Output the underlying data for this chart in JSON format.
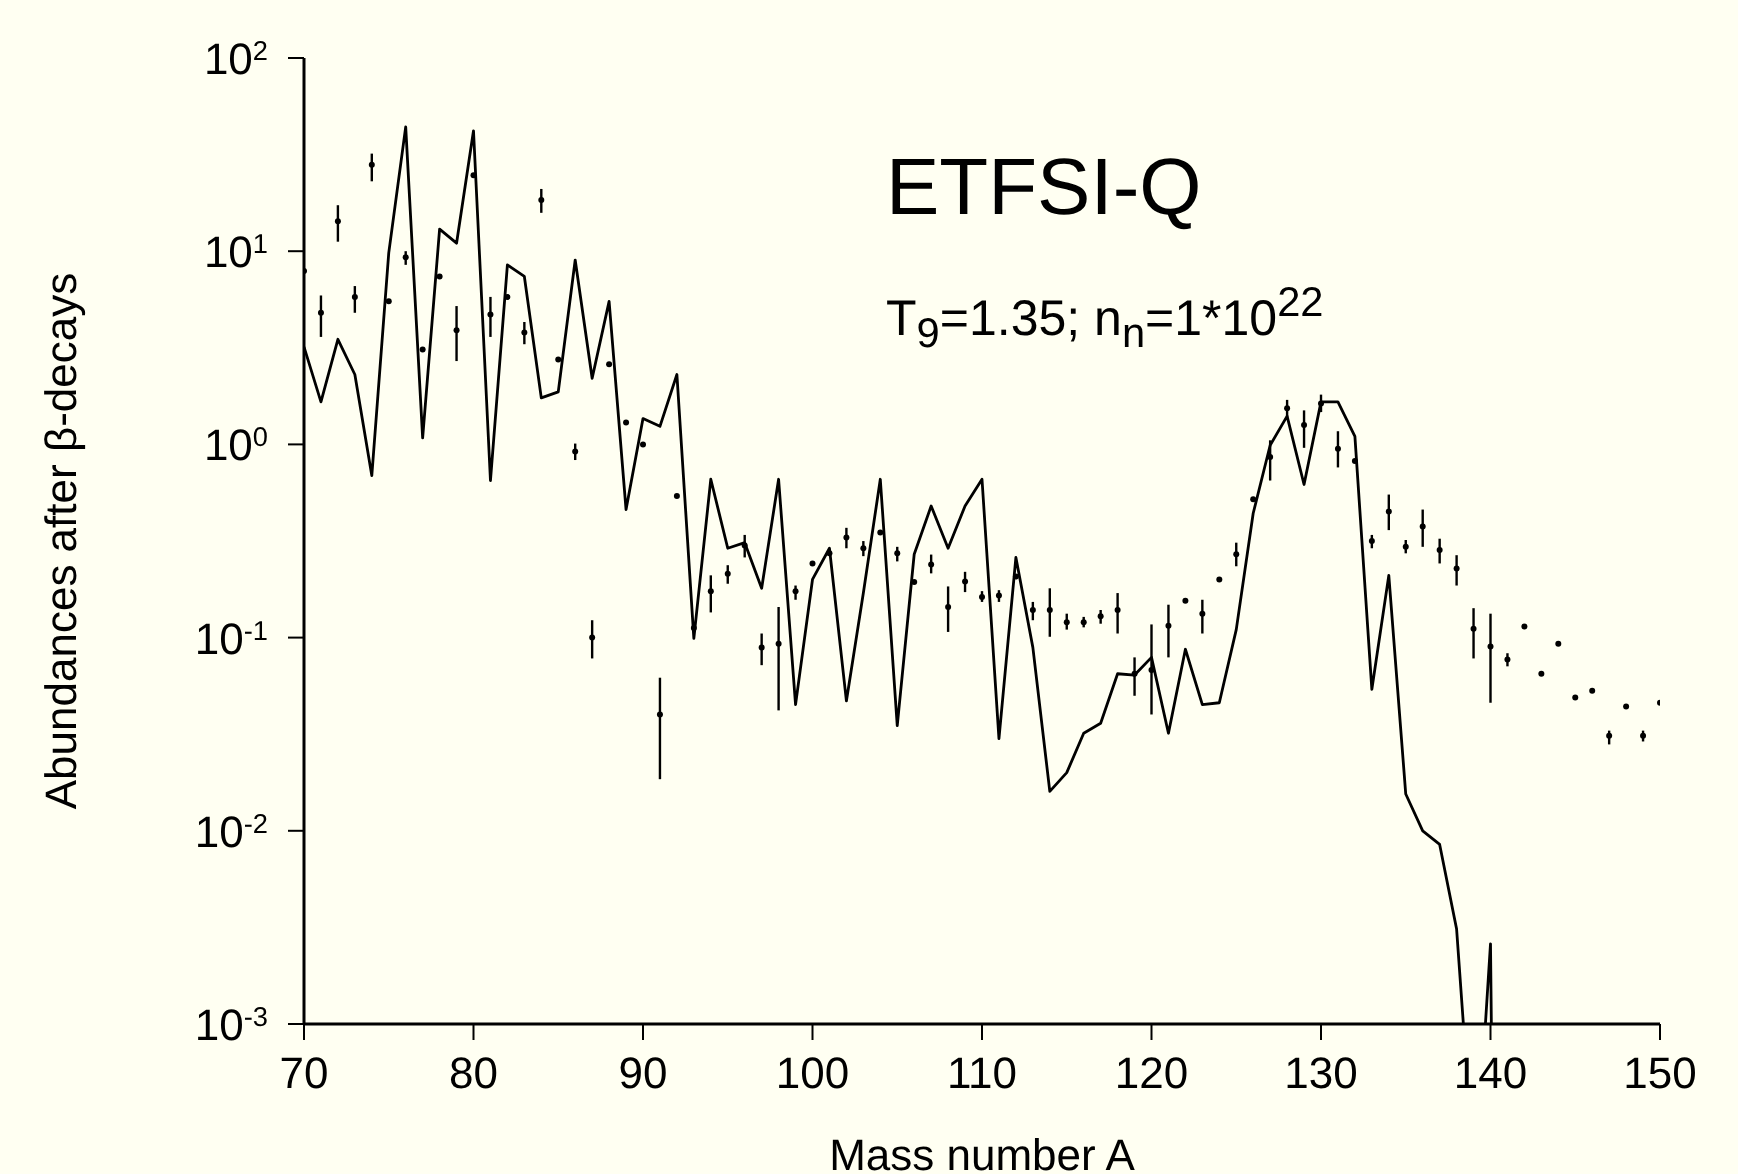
{
  "chart_data": {
    "type": "line",
    "xlabel": "Mass number A",
    "ylabel": "Abundances after β-decays",
    "annotations": [
      "ETFSI-Q",
      "T$_{9}$=1.35;  n$_{n}$=1*10$^{22}$"
    ],
    "log": "y",
    "xlim": [
      70,
      150
    ],
    "xticks": [
      70,
      80,
      90,
      100,
      110,
      120,
      130,
      140,
      150
    ],
    "ylim": [
      0.001,
      100
    ],
    "yticks": [
      {
        "value": 0.001,
        "label": "10$^{-3}$"
      },
      {
        "value": 0.01,
        "label": "10$^{-2}$"
      },
      {
        "value": 0.1,
        "label": "10$^{-1}$"
      },
      {
        "value": 1,
        "label": "10$^{0}$"
      },
      {
        "value": 10,
        "label": "10$^{1}$"
      },
      {
        "value": 100,
        "label": "10$^{2}$"
      }
    ],
    "series": [
      {
        "color": "#000000",
        "line_style": "solid",
        "x": [
          70,
          71,
          72,
          73,
          74,
          75,
          76,
          77,
          78,
          79,
          80,
          81,
          82,
          83,
          84,
          85,
          86,
          87,
          88,
          89,
          90,
          91,
          92,
          93,
          94,
          95,
          96,
          97,
          98,
          99,
          100,
          101,
          102,
          103,
          104,
          105,
          106,
          107,
          108,
          109,
          110,
          111,
          112,
          113,
          114,
          115,
          116,
          117,
          118,
          119,
          120,
          121,
          122,
          123,
          124,
          125,
          126,
          127,
          128,
          129,
          130,
          131,
          132,
          133,
          134,
          135,
          136,
          137,
          138,
          138.4,
          138.5,
          139.7,
          140,
          140.05
        ],
        "values": [
          3.2,
          1.66,
          3.5,
          2.3,
          0.69,
          9.8,
          44,
          1.08,
          13,
          11,
          42,
          0.65,
          8.5,
          7.4,
          1.74,
          1.87,
          9,
          2.2,
          5.5,
          0.46,
          1.36,
          1.24,
          2.3,
          0.099,
          0.66,
          0.29,
          0.31,
          0.18,
          0.66,
          0.045,
          0.2,
          0.29,
          0.047,
          0.17,
          0.66,
          0.035,
          0.27,
          0.48,
          0.29,
          0.48,
          0.66,
          0.03,
          0.26,
          0.089,
          0.016,
          0.02,
          0.032,
          0.036,
          0.065,
          0.064,
          0.079,
          0.032,
          0.087,
          0.045,
          0.046,
          0.11,
          0.44,
          0.99,
          1.4,
          0.62,
          1.66,
          1.66,
          1.1,
          0.054,
          0.21,
          0.0155,
          0.01,
          0.0085,
          0.0031,
          0.001,
          null,
          0.001,
          0.0026,
          0.001
        ]
      },
      {
        "type": "scatter",
        "color": "#000000",
        "marker": "circle",
        "x": [
          70,
          71,
          72,
          73,
          74,
          75,
          76,
          77,
          78,
          79,
          80,
          81,
          82,
          83,
          84,
          85,
          86,
          87,
          88,
          89,
          90,
          91,
          92,
          93,
          94,
          95,
          96,
          97,
          98,
          99,
          100,
          101,
          102,
          103,
          104,
          105,
          106,
          107,
          108,
          109,
          110,
          111,
          112,
          113,
          114,
          115,
          116,
          117,
          118,
          119,
          120,
          121,
          122,
          123,
          124,
          125,
          126,
          127,
          128,
          129,
          130,
          131,
          132,
          133,
          134,
          135,
          136,
          137,
          138,
          139,
          140,
          141,
          142,
          143,
          144,
          145,
          146,
          147,
          148,
          149,
          150
        ],
        "values": [
          7.9,
          4.8,
          14.3,
          5.8,
          28,
          5.5,
          9.3,
          3.1,
          7.4,
          3.9,
          24.7,
          4.7,
          5.8,
          3.8,
          18.4,
          2.75,
          0.92,
          0.1,
          2.6,
          1.3,
          1.0,
          0.04,
          0.54,
          0.112,
          0.174,
          0.214,
          0.3,
          0.089,
          0.093,
          0.174,
          0.242,
          0.273,
          0.33,
          0.29,
          0.35,
          0.273,
          0.194,
          0.239,
          0.144,
          0.195,
          0.162,
          0.165,
          0.207,
          0.139,
          0.139,
          0.12,
          0.12,
          0.129,
          0.139,
          0.065,
          0.068,
          0.115,
          0.155,
          0.133,
          0.2,
          0.27,
          0.52,
          0.86,
          1.54,
          1.26,
          1.63,
          0.95,
          0.82,
          0.316,
          0.45,
          0.295,
          0.376,
          0.284,
          0.228,
          0.111,
          0.09,
          0.077,
          0.114,
          0.065,
          0.093,
          0.049,
          0.053,
          0.031,
          0.044,
          0.031,
          0.046
        ],
        "errors": [
          null,
          [
            3.6,
            5.9
          ],
          [
            11.2,
            17.3
          ],
          [
            4.8,
            6.6
          ],
          [
            23,
            32
          ],
          null,
          [
            8.5,
            10
          ],
          null,
          null,
          [
            2.7,
            5.2
          ],
          null,
          [
            3.6,
            5.8
          ],
          null,
          [
            3.3,
            4.3
          ],
          [
            15.8,
            21
          ],
          null,
          [
            0.83,
            1.01
          ],
          [
            0.078,
            0.123
          ],
          null,
          null,
          null,
          [
            0.0185,
            0.062
          ],
          null,
          null,
          [
            0.135,
            0.21
          ],
          [
            0.19,
            0.237
          ],
          [
            0.26,
            0.34
          ],
          [
            0.072,
            0.105
          ],
          [
            0.042,
            0.144
          ],
          [
            0.157,
            0.186
          ],
          null,
          null,
          [
            0.29,
            0.37
          ],
          [
            0.264,
            0.316
          ],
          null,
          [
            0.248,
            0.295
          ],
          null,
          [
            0.215,
            0.269
          ],
          [
            0.107,
            0.184
          ],
          [
            0.172,
            0.219
          ],
          [
            0.153,
            0.174
          ],
          [
            0.153,
            0.176
          ],
          null,
          [
            0.123,
            0.153
          ],
          [
            0.101,
            0.18
          ],
          [
            0.11,
            0.133
          ],
          [
            0.113,
            0.128
          ],
          [
            0.118,
            0.139
          ],
          [
            0.105,
            0.17
          ],
          [
            0.05,
            0.079
          ],
          [
            0.04,
            0.117
          ],
          [
            0.079,
            0.148
          ],
          null,
          [
            0.105,
            0.157
          ],
          null,
          [
            0.234,
            0.31
          ],
          null,
          [
            0.65,
            1.05
          ],
          [
            1.39,
            1.7
          ],
          [
            0.96,
            1.5
          ],
          [
            1.47,
            1.81
          ],
          [
            0.76,
            1.17
          ],
          null,
          [
            0.29,
            0.34
          ],
          [
            0.36,
            0.55
          ],
          [
            0.273,
            0.32
          ],
          [
            0.295,
            0.46
          ],
          [
            0.242,
            0.325
          ],
          [
            0.186,
            0.267
          ],
          [
            0.078,
            0.142
          ],
          [
            0.046,
            0.133
          ],
          [
            0.071,
            0.083
          ],
          null,
          null,
          null,
          null,
          null,
          [
            0.028,
            0.033
          ],
          null,
          [
            0.029,
            0.033
          ],
          null
        ]
      }
    ]
  }
}
